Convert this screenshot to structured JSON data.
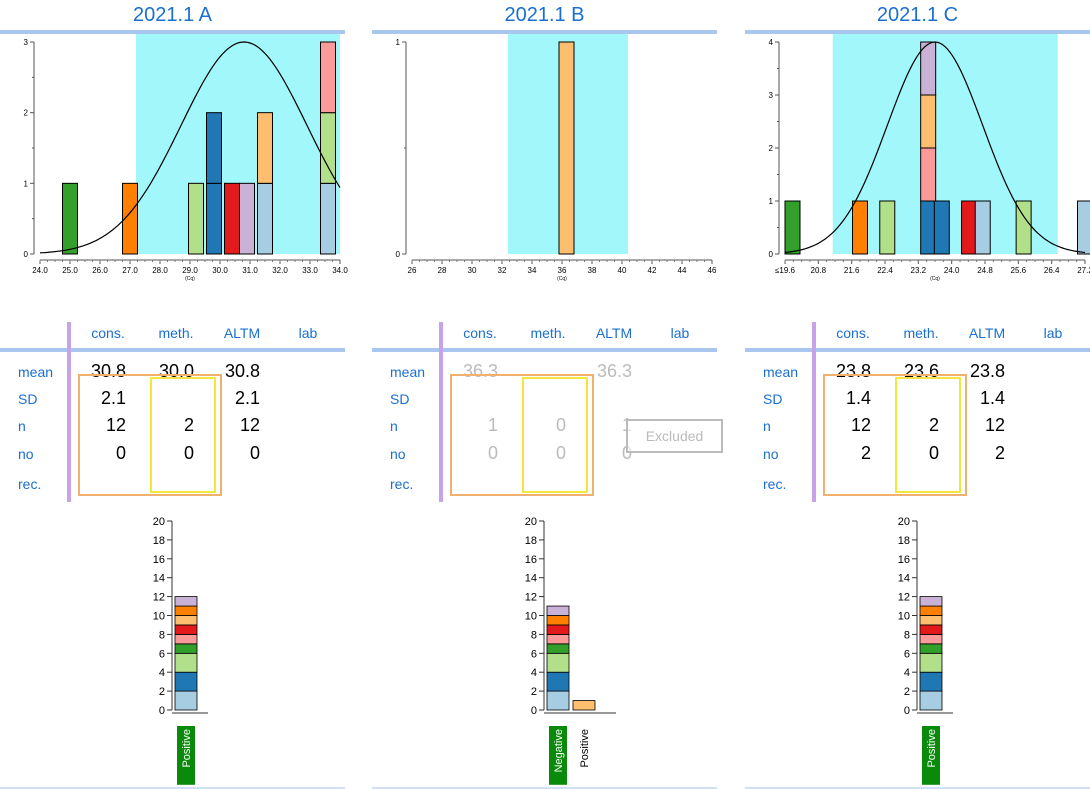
{
  "columns": [
    "cons.",
    "meth.",
    "ALTM",
    "lab"
  ],
  "row_labels": [
    "mean",
    "SD",
    "n",
    "no",
    "rec."
  ],
  "colors": {
    "cyan_band": "#a2f7fb",
    "light_blue": "#a6cde2",
    "dark_blue": "#1f77b4",
    "light_green": "#b2df8a",
    "dark_green": "#33a02c",
    "pink": "#fb9a99",
    "red": "#e31a1c",
    "light_orange": "#fdbf6f",
    "orange": "#ff7f00",
    "lavender": "#cab2d6",
    "positive_green": "#0a8a0a"
  },
  "panels": [
    {
      "title": "2021.1 A",
      "stats": {
        "mean": [
          "30.8",
          "30.0",
          "30.8",
          ""
        ],
        "SD": [
          "2.1",
          "",
          "2.1",
          ""
        ],
        "n": [
          "12",
          "2",
          "12",
          ""
        ],
        "no": [
          "0",
          "0",
          "0",
          ""
        ],
        "rec.": [
          "",
          "",
          "",
          ""
        ]
      },
      "excluded": false,
      "excluded_label": ""
    },
    {
      "title": "2021.1 B",
      "stats": {
        "mean": [
          "36.3",
          "",
          "36.3",
          ""
        ],
        "SD": [
          "",
          "",
          "",
          ""
        ],
        "n": [
          "1",
          "0",
          "1",
          ""
        ],
        "no": [
          "0",
          "0",
          "0",
          ""
        ],
        "rec.": [
          "",
          "",
          "",
          ""
        ]
      },
      "excluded": true,
      "excluded_label": "Excluded"
    },
    {
      "title": "2021.1 C",
      "stats": {
        "mean": [
          "23.8",
          "23.6",
          "23.8",
          ""
        ],
        "SD": [
          "1.4",
          "",
          "1.4",
          ""
        ],
        "n": [
          "12",
          "2",
          "12",
          ""
        ],
        "no": [
          "2",
          "0",
          "2",
          ""
        ],
        "rec.": [
          "",
          "",
          "",
          ""
        ]
      },
      "excluded": false,
      "excluded_label": ""
    }
  ],
  "chart_data": [
    {
      "type": "bar",
      "panel": 0,
      "xlabel": "(Cq)",
      "xlim": [
        24.0,
        34.0
      ],
      "xticks": [
        "24.0",
        "25.0",
        "26.0",
        "27.0",
        "28.0",
        "29.0",
        "30.0",
        "31.0",
        "32.0",
        "33.0",
        "34.0"
      ],
      "ylim": [
        0,
        3
      ],
      "yticks": [
        "0",
        "1",
        "2",
        "3"
      ],
      "accepted_range": [
        27.2,
        34.0
      ],
      "normal_curve": {
        "mean": 30.8,
        "sd": 2.1,
        "peak": 3
      },
      "bars": [
        {
          "x": 25.0,
          "stack": [
            "dark_green"
          ]
        },
        {
          "x": 27.0,
          "stack": [
            "orange"
          ]
        },
        {
          "x": 29.2,
          "stack": [
            "light_green"
          ]
        },
        {
          "x": 29.8,
          "stack": [
            "dark_blue",
            "dark_blue"
          ]
        },
        {
          "x": 30.4,
          "stack": [
            "red"
          ]
        },
        {
          "x": 30.9,
          "stack": [
            "lavender"
          ]
        },
        {
          "x": 31.5,
          "stack": [
            "light_blue",
            "light_orange"
          ]
        },
        {
          "x": 33.6,
          "stack": [
            "light_blue",
            "light_green",
            "pink"
          ]
        }
      ]
    },
    {
      "type": "bar",
      "panel": 1,
      "xlabel": "(Cq)",
      "xlim": [
        26,
        46
      ],
      "xticks": [
        "26",
        "28",
        "30",
        "32",
        "34",
        "36",
        "38",
        "40",
        "42",
        "44",
        "46"
      ],
      "ylim": [
        0,
        1
      ],
      "yticks": [
        "0",
        "1"
      ],
      "accepted_range": [
        32.4,
        40.4
      ],
      "normal_curve": null,
      "bars": [
        {
          "x": 36.3,
          "stack": [
            "light_orange"
          ]
        }
      ]
    },
    {
      "type": "bar",
      "panel": 2,
      "xlabel": "(Cq)",
      "xlim": [
        19.4,
        28.2
      ],
      "xticks": [
        "≤19.6",
        "20.8",
        "21.6",
        "22.4",
        "23.2",
        "24.0",
        "24.8",
        "25.6",
        "26.4",
        "27.2"
      ],
      "ylim": [
        0,
        4
      ],
      "yticks": [
        "0",
        "1",
        "2",
        "3",
        "4"
      ],
      "accepted_range": [
        20.8,
        27.4
      ],
      "normal_curve": {
        "mean": 23.8,
        "sd": 1.4,
        "peak": 4
      },
      "bars": [
        {
          "x": 19.6,
          "stack": [
            "dark_green"
          ]
        },
        {
          "x": 21.6,
          "stack": [
            "orange"
          ]
        },
        {
          "x": 22.4,
          "stack": [
            "light_green"
          ]
        },
        {
          "x": 23.6,
          "stack": [
            "dark_blue",
            "pink",
            "light_orange",
            "lavender"
          ]
        },
        {
          "x": 24.0,
          "stack": [
            "dark_blue"
          ]
        },
        {
          "x": 24.8,
          "stack": [
            "red"
          ]
        },
        {
          "x": 25.2,
          "stack": [
            "light_blue"
          ]
        },
        {
          "x": 26.4,
          "stack": [
            "light_green"
          ]
        },
        {
          "x": 28.2,
          "stack": [
            "light_blue"
          ]
        }
      ]
    },
    {
      "type": "bar",
      "panel": 0,
      "ylim": [
        0,
        20
      ],
      "yticks": [
        "0",
        "2",
        "4",
        "6",
        "8",
        "10",
        "12",
        "14",
        "16",
        "18",
        "20"
      ],
      "categories": [
        {
          "label": "Positive",
          "label_bg": "positive_green",
          "label_color": "#ffffff",
          "segments": [
            [
              "light_blue",
              2
            ],
            [
              "dark_blue",
              2
            ],
            [
              "light_green",
              2
            ],
            [
              "dark_green",
              1
            ],
            [
              "pink",
              1
            ],
            [
              "red",
              1
            ],
            [
              "light_orange",
              1
            ],
            [
              "orange",
              1
            ],
            [
              "lavender",
              1
            ]
          ]
        }
      ]
    },
    {
      "type": "bar",
      "panel": 1,
      "ylim": [
        0,
        20
      ],
      "yticks": [
        "0",
        "2",
        "4",
        "6",
        "8",
        "10",
        "12",
        "14",
        "16",
        "18",
        "20"
      ],
      "categories": [
        {
          "label": "Negative",
          "label_bg": "positive_green",
          "label_color": "#ffffff",
          "segments": [
            [
              "light_blue",
              2
            ],
            [
              "dark_blue",
              2
            ],
            [
              "light_green",
              2
            ],
            [
              "dark_green",
              1
            ],
            [
              "pink",
              1
            ],
            [
              "red",
              1
            ],
            [
              "orange",
              1
            ],
            [
              "lavender",
              1
            ]
          ]
        },
        {
          "label": "Positive",
          "label_bg": "",
          "label_color": "#000000",
          "segments": [
            [
              "light_orange",
              1
            ]
          ]
        }
      ]
    },
    {
      "type": "bar",
      "panel": 2,
      "ylim": [
        0,
        20
      ],
      "yticks": [
        "0",
        "2",
        "4",
        "6",
        "8",
        "10",
        "12",
        "14",
        "16",
        "18",
        "20"
      ],
      "categories": [
        {
          "label": "Positive",
          "label_bg": "positive_green",
          "label_color": "#ffffff",
          "segments": [
            [
              "light_blue",
              2
            ],
            [
              "dark_blue",
              2
            ],
            [
              "light_green",
              2
            ],
            [
              "dark_green",
              1
            ],
            [
              "pink",
              1
            ],
            [
              "red",
              1
            ],
            [
              "light_orange",
              1
            ],
            [
              "orange",
              1
            ],
            [
              "lavender",
              1
            ]
          ]
        }
      ]
    }
  ]
}
